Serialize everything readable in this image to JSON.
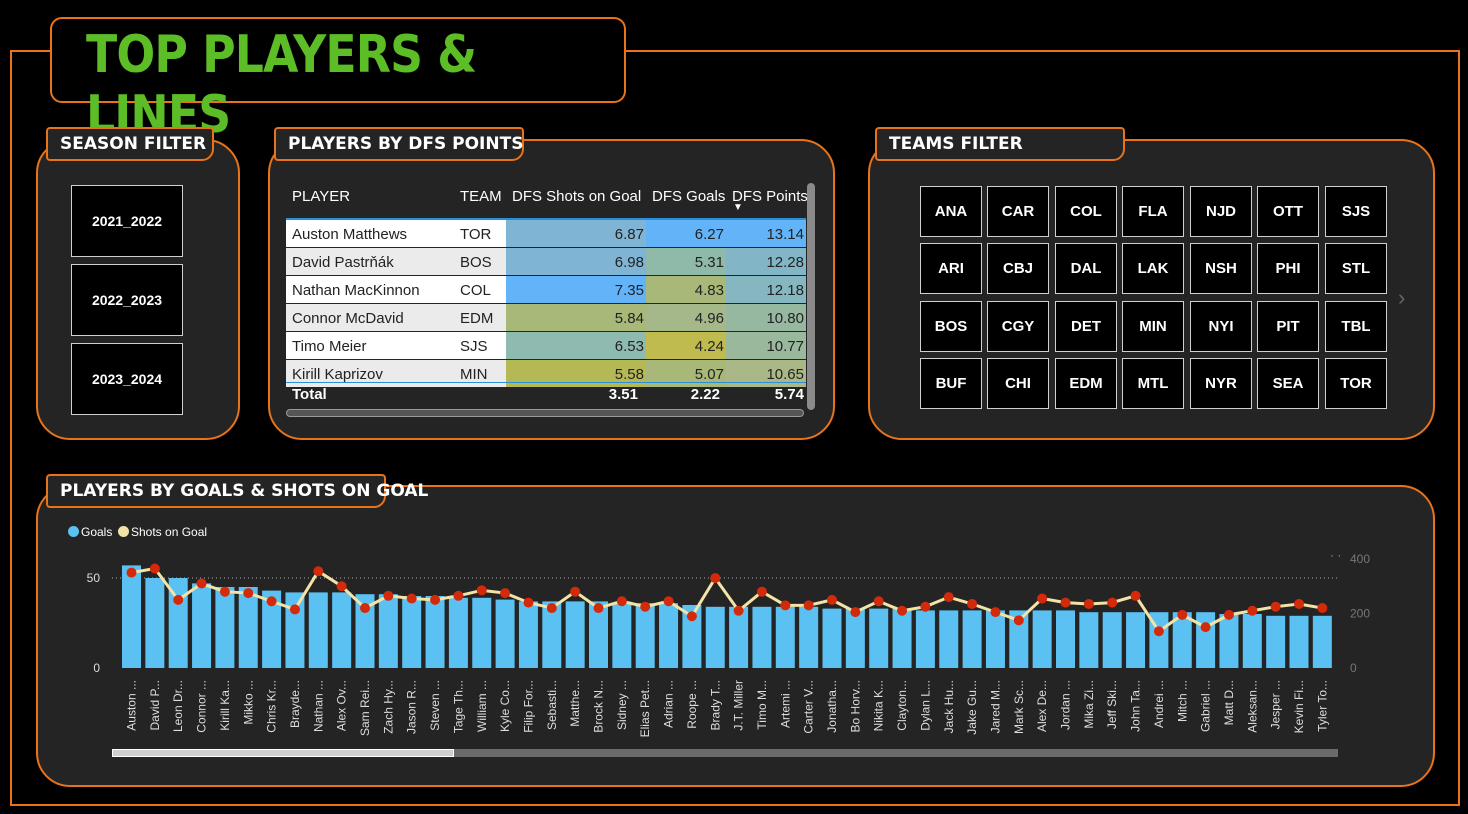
{
  "page_title": "TOP PLAYERS & LINES",
  "season_filter": {
    "title": "SEASON FILTER",
    "options": [
      "2021_2022",
      "2022_2023",
      "2023_2024"
    ]
  },
  "players_table": {
    "title": "PLAYERS BY DFS POINTS",
    "columns": [
      "PLAYER",
      "TEAM",
      "DFS Shots on Goal",
      "DFS Goals",
      "DFS Points"
    ],
    "sort_indicator": "▼",
    "rows": [
      {
        "player": "Auston Matthews",
        "team": "TOR",
        "shots": "6.87",
        "goals": "6.27",
        "points": "13.14"
      },
      {
        "player": "David Pastrňák",
        "team": "BOS",
        "shots": "6.98",
        "goals": "5.31",
        "points": "12.28"
      },
      {
        "player": "Nathan MacKinnon",
        "team": "COL",
        "shots": "7.35",
        "goals": "4.83",
        "points": "12.18"
      },
      {
        "player": "Connor McDavid",
        "team": "EDM",
        "shots": "5.84",
        "goals": "4.96",
        "points": "10.80"
      },
      {
        "player": "Timo Meier",
        "team": "SJS",
        "shots": "6.53",
        "goals": "4.24",
        "points": "10.77"
      },
      {
        "player": "Kirill Kaprizov",
        "team": "MIN",
        "shots": "5.58",
        "goals": "5.07",
        "points": "10.65"
      }
    ],
    "total": {
      "label": "Total",
      "shots": "3.51",
      "goals": "2.22",
      "points": "5.74"
    }
  },
  "teams_filter": {
    "title": "TEAMS FILTER",
    "teams": [
      "ANA",
      "CAR",
      "COL",
      "FLA",
      "NJD",
      "OTT",
      "SJS",
      "ARI",
      "CBJ",
      "DAL",
      "LAK",
      "NSH",
      "PHI",
      "STL",
      "BOS",
      "CGY",
      "DET",
      "MIN",
      "NYI",
      "PIT",
      "TBL",
      "BUF",
      "CHI",
      "EDM",
      "MTL",
      "NYR",
      "SEA",
      "TOR"
    ],
    "next_icon": "chevron-right-icon"
  },
  "goals_chart": {
    "title": "PLAYERS BY GOALS & SHOTS ON GOAL",
    "legend": [
      {
        "name": "Goals",
        "color": "#5bc0f2"
      },
      {
        "name": "Shots on Goal",
        "color": "#f2e3a6"
      }
    ]
  },
  "chart_data": {
    "type": "bar",
    "combo": "bar + line (dual axis)",
    "categories": [
      "Auston ...",
      "David P...",
      "Leon Dr...",
      "Connor ...",
      "Kirill Ka...",
      "Mikko ...",
      "Chris Kr...",
      "Brayde...",
      "Nathan ...",
      "Alex Ov...",
      "Sam Rei...",
      "Zach Hy...",
      "Jason R...",
      "Steven ...",
      "Tage Th...",
      "William ...",
      "Kyle Co...",
      "Filip For...",
      "Sebasti...",
      "Matthe...",
      "Brock N...",
      "Sidney ...",
      "Elias Pet...",
      "Adrian ...",
      "Roope ...",
      "Brady T...",
      "J.T. Miller",
      "Timo M...",
      "Artemi ...",
      "Carter V...",
      "Jonatha...",
      "Bo Horv...",
      "Nikita K...",
      "Clayton...",
      "Dylan L...",
      "Jack Hu...",
      "Jake Gu...",
      "Jared M...",
      "Mark Sc...",
      "Alex De...",
      "Jordan ...",
      "Mika Zi...",
      "Jeff Ski...",
      "John Ta...",
      "Andrei ...",
      "Mitch ...",
      "Gabriel ...",
      "Matt D...",
      "Aleksan...",
      "Jesper ...",
      "Kevin Fi...",
      "Tyler To..."
    ],
    "series": [
      {
        "name": "Goals",
        "axis": "left",
        "values": [
          57,
          50,
          50,
          47,
          45,
          45,
          43,
          42,
          42,
          42,
          41,
          41,
          40,
          40,
          39,
          39,
          38,
          37,
          37,
          37,
          37,
          36,
          36,
          36,
          35,
          34,
          34,
          34,
          34,
          34,
          33,
          33,
          33,
          33,
          32,
          32,
          32,
          32,
          32,
          32,
          32,
          31,
          31,
          31,
          31,
          31,
          31,
          30,
          30,
          29,
          29,
          29
        ]
      },
      {
        "name": "Shots on Goal",
        "axis": "right",
        "values": [
          350,
          365,
          250,
          310,
          280,
          275,
          245,
          215,
          355,
          300,
          220,
          265,
          255,
          250,
          265,
          285,
          275,
          240,
          220,
          280,
          220,
          245,
          225,
          245,
          190,
          330,
          210,
          280,
          230,
          230,
          250,
          205,
          245,
          210,
          225,
          260,
          235,
          205,
          175,
          255,
          240,
          235,
          240,
          265,
          135,
          195,
          150,
          195,
          210,
          225,
          235,
          220
        ]
      }
    ],
    "ylim_left": [
      0,
      57
    ],
    "ylim_right": [
      0,
      400
    ],
    "left_ticks": [
      "0",
      "50"
    ],
    "right_ticks": [
      "0",
      "200",
      "400"
    ],
    "xlabel": "",
    "ylabel": "",
    "legend_position": "top-left",
    "grid": false
  }
}
